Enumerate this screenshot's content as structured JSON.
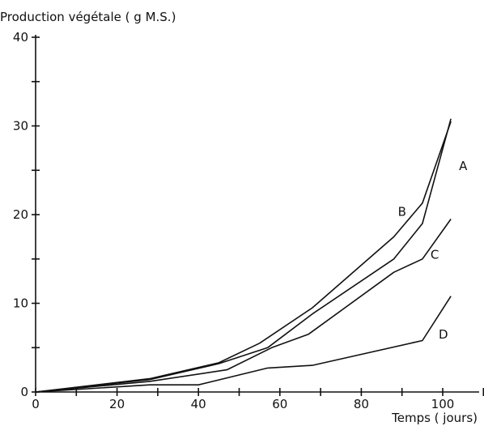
{
  "chart_data": {
    "type": "line",
    "title": "",
    "ylabel": "Production végétale ( g M.S.)",
    "xlabel": "Temps ( jours)",
    "xlim": [
      0,
      110
    ],
    "ylim": [
      0,
      40
    ],
    "x_ticks": [
      0,
      20,
      40,
      60,
      80,
      100
    ],
    "y_ticks": [
      0,
      10,
      20,
      30,
      40
    ],
    "x_minor_step": 10,
    "y_minor_step": 5,
    "grid": false,
    "series": [
      {
        "name": "A",
        "x": [
          0,
          28,
          45,
          57,
          68,
          88,
          95,
          102
        ],
        "y": [
          0,
          1.4,
          3.2,
          5.0,
          8.8,
          15.0,
          19.0,
          30.8
        ]
      },
      {
        "name": "B",
        "x": [
          0,
          28,
          45,
          55,
          68,
          88,
          95,
          102
        ],
        "y": [
          0,
          1.5,
          3.3,
          5.5,
          9.5,
          17.5,
          21.3,
          30.5
        ]
      },
      {
        "name": "C",
        "x": [
          0,
          28,
          47,
          58,
          67,
          88,
          95,
          102
        ],
        "y": [
          0,
          1.2,
          2.5,
          5.0,
          6.5,
          13.5,
          15.0,
          19.5
        ]
      },
      {
        "name": "D",
        "x": [
          0,
          28,
          40,
          57,
          68,
          95,
          102
        ],
        "y": [
          0,
          0.8,
          0.8,
          2.7,
          3.0,
          5.8,
          10.8
        ]
      }
    ]
  }
}
